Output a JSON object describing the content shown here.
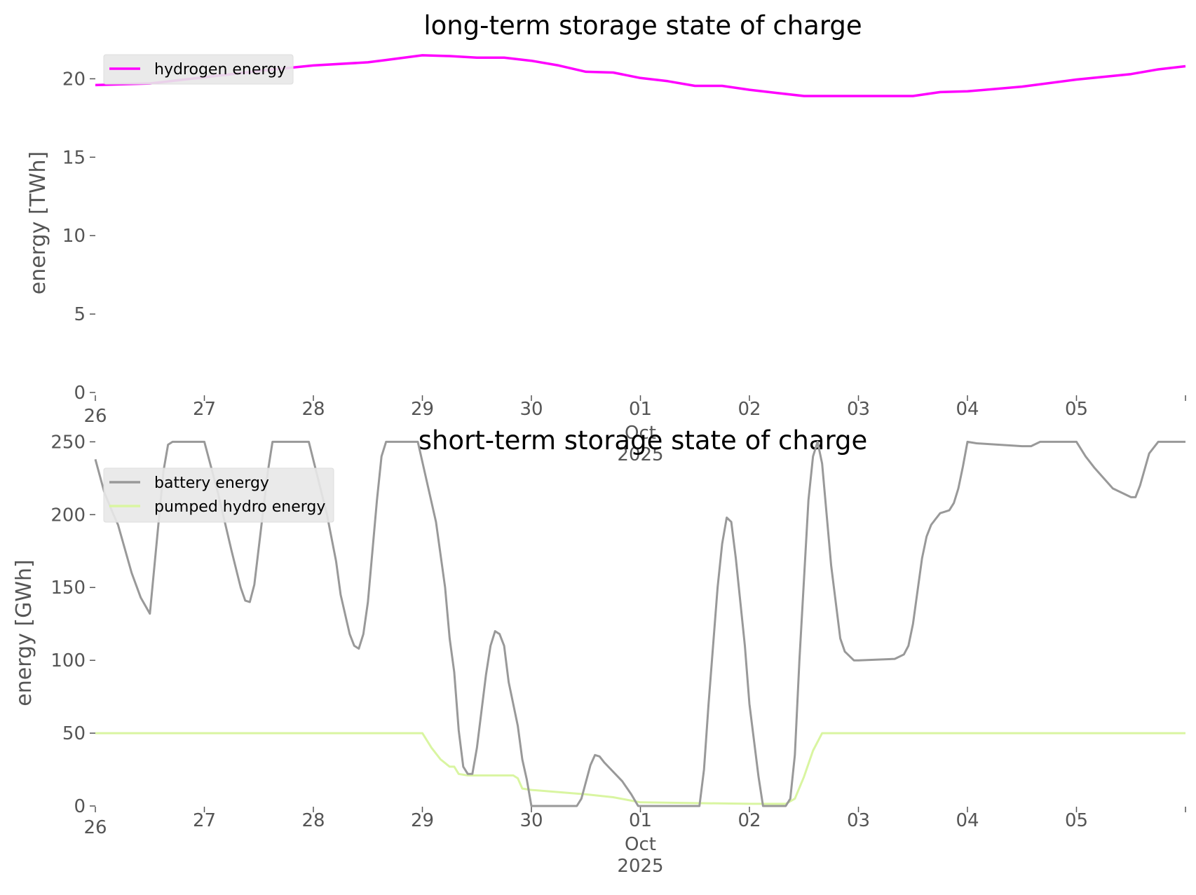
{
  "chart_data": [
    {
      "type": "line",
      "title": "long-term storage state of charge",
      "xlabel": "",
      "ylabel": "energy [TWh]",
      "ylim": [
        0,
        22
      ],
      "xlim": [
        "2025-09-26",
        "2025-10-06"
      ],
      "grid": false,
      "legend": "top-left",
      "x_ticks": [
        "26",
        "27",
        "28",
        "29",
        "30",
        "01",
        "02",
        "03",
        "04",
        "05"
      ],
      "x_tick_sublabels": [
        "Oct",
        "2025"
      ],
      "y_ticks": [
        "0",
        "5",
        "10",
        "15",
        "20"
      ],
      "series": [
        {
          "name": "hydrogen energy",
          "color": "#ff00ff",
          "points": [
            [
              "2025-09-26T00:00",
              19.6
            ],
            [
              "2025-09-26T06:00",
              19.65
            ],
            [
              "2025-09-26T12:00",
              19.7
            ],
            [
              "2025-09-27T00:00",
              20.1
            ],
            [
              "2025-09-27T12:00",
              20.5
            ],
            [
              "2025-09-28T00:00",
              20.85
            ],
            [
              "2025-09-28T12:00",
              21.05
            ],
            [
              "2025-09-28T16:00",
              21.2
            ],
            [
              "2025-09-29T00:00",
              21.5
            ],
            [
              "2025-09-29T06:00",
              21.45
            ],
            [
              "2025-09-29T12:00",
              21.35
            ],
            [
              "2025-09-29T18:00",
              21.35
            ],
            [
              "2025-09-30T00:00",
              21.15
            ],
            [
              "2025-09-30T06:00",
              20.85
            ],
            [
              "2025-09-30T12:00",
              20.45
            ],
            [
              "2025-09-30T18:00",
              20.4
            ],
            [
              "2025-10-01T00:00",
              20.05
            ],
            [
              "2025-10-01T06:00",
              19.85
            ],
            [
              "2025-10-01T12:00",
              19.55
            ],
            [
              "2025-10-01T18:00",
              19.55
            ],
            [
              "2025-10-02T00:00",
              19.3
            ],
            [
              "2025-10-02T06:00",
              19.1
            ],
            [
              "2025-10-02T12:00",
              18.9
            ],
            [
              "2025-10-03T00:00",
              18.9
            ],
            [
              "2025-10-03T12:00",
              18.9
            ],
            [
              "2025-10-03T18:00",
              19.15
            ],
            [
              "2025-10-04T00:00",
              19.2
            ],
            [
              "2025-10-04T12:00",
              19.5
            ],
            [
              "2025-10-05T00:00",
              19.95
            ],
            [
              "2025-10-05T12:00",
              20.3
            ],
            [
              "2025-10-05T18:00",
              20.6
            ],
            [
              "2025-10-06T00:00",
              20.8
            ]
          ]
        }
      ]
    },
    {
      "type": "line",
      "title": "short-term storage state of charge",
      "xlabel": "",
      "ylabel": "energy [GWh]",
      "ylim": [
        0,
        255
      ],
      "xlim": [
        "2025-09-26",
        "2025-10-06"
      ],
      "grid": false,
      "legend": "top-left",
      "x_ticks": [
        "26",
        "27",
        "28",
        "29",
        "30",
        "01",
        "02",
        "03",
        "04",
        "05"
      ],
      "x_tick_sublabels": [
        "Oct",
        "2025"
      ],
      "y_ticks": [
        "0",
        "50",
        "100",
        "150",
        "200",
        "250"
      ],
      "series": [
        {
          "name": "battery energy",
          "color": "#999999",
          "points": [
            [
              "2025-09-26T00:00",
              238
            ],
            [
              "2025-09-26T02:00",
              215
            ],
            [
              "2025-09-26T04:00",
              200
            ],
            [
              "2025-09-26T05:00",
              193
            ],
            [
              "2025-09-26T08:00",
              160
            ],
            [
              "2025-09-26T10:00",
              143
            ],
            [
              "2025-09-26T12:00",
              132
            ],
            [
              "2025-09-26T15:00",
              230
            ],
            [
              "2025-09-26T16:00",
              248
            ],
            [
              "2025-09-26T17:00",
              250
            ],
            [
              "2025-09-27T00:00",
              250
            ],
            [
              "2025-09-27T03:00",
              215
            ],
            [
              "2025-09-27T06:00",
              175
            ],
            [
              "2025-09-27T08:00",
              150
            ],
            [
              "2025-09-27T09:00",
              141
            ],
            [
              "2025-09-27T10:00",
              140
            ],
            [
              "2025-09-27T11:00",
              152
            ],
            [
              "2025-09-27T14:00",
              230
            ],
            [
              "2025-09-27T15:00",
              250
            ],
            [
              "2025-09-27T23:00",
              250
            ],
            [
              "2025-09-28T03:00",
              200
            ],
            [
              "2025-09-28T05:00",
              168
            ],
            [
              "2025-09-28T06:00",
              145
            ],
            [
              "2025-09-28T08:00",
              118
            ],
            [
              "2025-09-28T09:00",
              110
            ],
            [
              "2025-09-28T10:00",
              108
            ],
            [
              "2025-09-28T11:00",
              118
            ],
            [
              "2025-09-28T12:00",
              140
            ],
            [
              "2025-09-28T14:00",
              210
            ],
            [
              "2025-09-28T15:00",
              240
            ],
            [
              "2025-09-28T16:00",
              250
            ],
            [
              "2025-09-28T23:00",
              250
            ],
            [
              "2025-09-29T03:00",
              195
            ],
            [
              "2025-09-29T05:00",
              150
            ],
            [
              "2025-09-29T06:00",
              115
            ],
            [
              "2025-09-29T07:00",
              92
            ],
            [
              "2025-09-29T08:00",
              52
            ],
            [
              "2025-09-29T09:00",
              27
            ],
            [
              "2025-09-29T10:00",
              22
            ],
            [
              "2025-09-29T11:00",
              22
            ],
            [
              "2025-09-29T12:00",
              40
            ],
            [
              "2025-09-29T14:00",
              90
            ],
            [
              "2025-09-29T15:00",
              110
            ],
            [
              "2025-09-29T16:00",
              120
            ],
            [
              "2025-09-29T17:00",
              118
            ],
            [
              "2025-09-29T18:00",
              110
            ],
            [
              "2025-09-29T19:00",
              85
            ],
            [
              "2025-09-29T21:00",
              55
            ],
            [
              "2025-09-29T22:00",
              32
            ],
            [
              "2025-09-29T23:00",
              18
            ],
            [
              "2025-09-30T00:00",
              0
            ],
            [
              "2025-09-30T10:00",
              0
            ],
            [
              "2025-09-30T11:00",
              5
            ],
            [
              "2025-09-30T13:00",
              28
            ],
            [
              "2025-09-30T14:00",
              35
            ],
            [
              "2025-09-30T15:00",
              34
            ],
            [
              "2025-09-30T16:00",
              30
            ],
            [
              "2025-09-30T20:00",
              17
            ],
            [
              "2025-09-30T22:00",
              8
            ],
            [
              "2025-09-30T23:30",
              0
            ],
            [
              "2025-10-01T13:00",
              0
            ],
            [
              "2025-10-01T14:00",
              25
            ],
            [
              "2025-10-01T15:00",
              70
            ],
            [
              "2025-10-01T17:00",
              150
            ],
            [
              "2025-10-01T18:00",
              180
            ],
            [
              "2025-10-01T19:00",
              198
            ],
            [
              "2025-10-01T20:00",
              195
            ],
            [
              "2025-10-01T21:00",
              170
            ],
            [
              "2025-10-01T23:00",
              110
            ],
            [
              "2025-10-02T00:00",
              70
            ],
            [
              "2025-10-02T02:00",
              20
            ],
            [
              "2025-10-02T03:00",
              0
            ],
            [
              "2025-10-02T08:00",
              0
            ],
            [
              "2025-10-02T09:00",
              5
            ],
            [
              "2025-10-02T10:00",
              35
            ],
            [
              "2025-10-02T11:00",
              100
            ],
            [
              "2025-10-02T13:00",
              210
            ],
            [
              "2025-10-02T14:00",
              240
            ],
            [
              "2025-10-02T15:00",
              250
            ],
            [
              "2025-10-02T16:00",
              235
            ],
            [
              "2025-10-02T18:00",
              165
            ],
            [
              "2025-10-02T20:00",
              115
            ],
            [
              "2025-10-02T21:00",
              106
            ],
            [
              "2025-10-02T23:00",
              100
            ],
            [
              "2025-10-03T00:00",
              100
            ],
            [
              "2025-10-03T08:00",
              101
            ],
            [
              "2025-10-03T10:00",
              104
            ],
            [
              "2025-10-03T11:00",
              110
            ],
            [
              "2025-10-03T12:00",
              125
            ],
            [
              "2025-10-03T14:00",
              170
            ],
            [
              "2025-10-03T15:00",
              185
            ],
            [
              "2025-10-03T16:00",
              193
            ],
            [
              "2025-10-03T17:00",
              197
            ],
            [
              "2025-10-03T18:00",
              201
            ],
            [
              "2025-10-03T19:00",
              202
            ],
            [
              "2025-10-03T20:00",
              203
            ],
            [
              "2025-10-03T21:00",
              208
            ],
            [
              "2025-10-03T22:00",
              218
            ],
            [
              "2025-10-03T23:00",
              233
            ],
            [
              "2025-10-04T00:00",
              250
            ],
            [
              "2025-10-04T02:00",
              249
            ],
            [
              "2025-10-04T12:00",
              247
            ],
            [
              "2025-10-04T14:00",
              247
            ],
            [
              "2025-10-04T16:00",
              250
            ],
            [
              "2025-10-05T00:00",
              250
            ],
            [
              "2025-10-05T02:00",
              240
            ],
            [
              "2025-10-05T04:00",
              232
            ],
            [
              "2025-10-05T06:00",
              225
            ],
            [
              "2025-10-05T08:00",
              218
            ],
            [
              "2025-10-05T10:00",
              215
            ],
            [
              "2025-10-05T12:00",
              212
            ],
            [
              "2025-10-05T13:00",
              212
            ],
            [
              "2025-10-05T14:00",
              220
            ],
            [
              "2025-10-05T16:00",
              242
            ],
            [
              "2025-10-05T18:00",
              250
            ],
            [
              "2025-10-06T00:00",
              250
            ]
          ]
        },
        {
          "name": "pumped hydro energy",
          "color": "#d9f5a1",
          "points": [
            [
              "2025-09-26T00:00",
              50
            ],
            [
              "2025-09-29T00:00",
              50
            ],
            [
              "2025-09-29T02:00",
              40
            ],
            [
              "2025-09-29T04:00",
              32
            ],
            [
              "2025-09-29T06:00",
              27
            ],
            [
              "2025-09-29T07:00",
              27
            ],
            [
              "2025-09-29T08:00",
              22
            ],
            [
              "2025-09-29T10:00",
              21
            ],
            [
              "2025-09-29T20:00",
              21
            ],
            [
              "2025-09-29T21:00",
              19
            ],
            [
              "2025-09-29T22:00",
              12
            ],
            [
              "2025-09-30T00:00",
              11
            ],
            [
              "2025-09-30T12:00",
              8
            ],
            [
              "2025-09-30T18:00",
              6
            ],
            [
              "2025-10-01T00:00",
              2.5
            ],
            [
              "2025-10-02T00:00",
              1.5
            ],
            [
              "2025-10-02T08:00",
              1.5
            ],
            [
              "2025-10-02T10:00",
              5
            ],
            [
              "2025-10-02T12:00",
              20
            ],
            [
              "2025-10-02T14:00",
              38
            ],
            [
              "2025-10-02T16:00",
              50
            ],
            [
              "2025-10-06T00:00",
              50
            ]
          ]
        }
      ]
    }
  ]
}
